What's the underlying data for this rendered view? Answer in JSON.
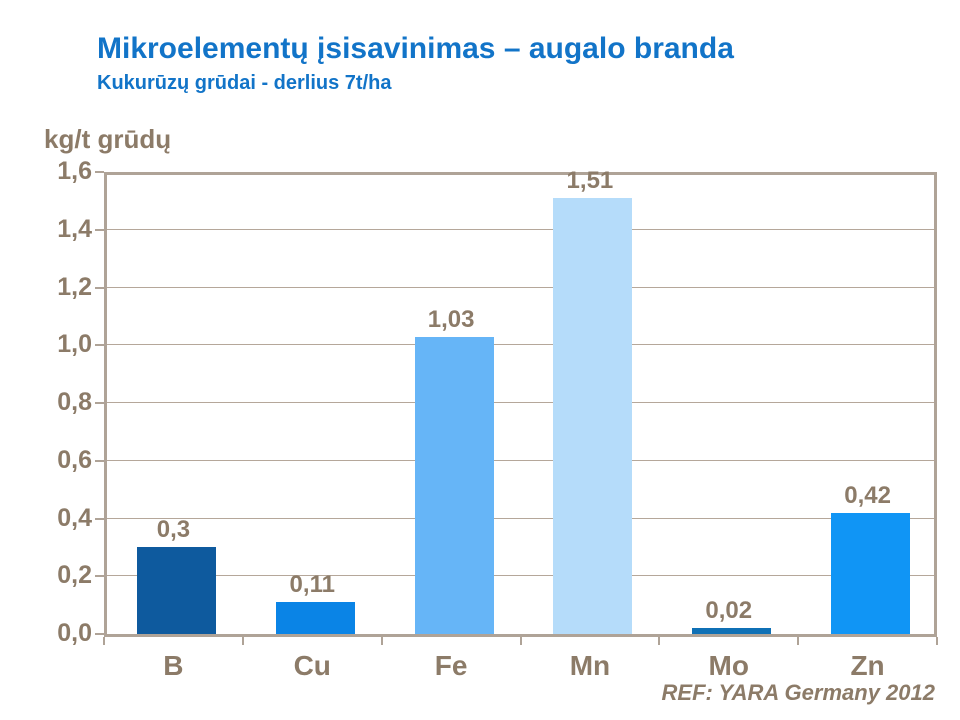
{
  "slide": {
    "title": "Mikroelementų įsisavinimas – augalo branda",
    "subtitle": "Kukurūzų grūdai - derlius 7t/ha",
    "y_axis_unit": "kg/t grūdų",
    "footer": "REF: YARA Germany 2012"
  },
  "colors": {
    "title_text": "#1274C8",
    "axis_text": "#8C7B68",
    "gridline": "#B5A79A",
    "frame": "#AFA397",
    "bars": [
      "#0E5A9E",
      "#0A84E6",
      "#66B5F7",
      "#B5DCFA",
      "#0F70B5",
      "#1095F5"
    ]
  },
  "chart_data": {
    "type": "bar",
    "title": "Mikroelementų įsisavinimas – augalo branda",
    "subtitle": "Kukurūzų grūdai - derlius 7t/ha",
    "categories": [
      "B",
      "Cu",
      "Fe",
      "Mn",
      "Mo",
      "Zn"
    ],
    "values": [
      0.3,
      0.11,
      1.03,
      1.51,
      0.02,
      0.42
    ],
    "value_labels": [
      "0,3",
      "0,11",
      "1,03",
      "1,51",
      "0,02",
      "0,42"
    ],
    "xlabel": "",
    "ylabel": "kg/t grūdų",
    "ylim": [
      0,
      1.6
    ],
    "yticks": [
      0,
      0.2,
      0.4,
      0.6,
      0.8,
      1.0,
      1.2,
      1.4,
      1.6
    ],
    "ytick_labels": [
      "0,0",
      "0,2",
      "0,4",
      "0,6",
      "0,8",
      "1,0",
      "1,2",
      "1,4",
      "1,6"
    ],
    "grid": true,
    "legend": false,
    "decimal_separator": ",",
    "annotation": "REF: YARA Germany 2012"
  }
}
